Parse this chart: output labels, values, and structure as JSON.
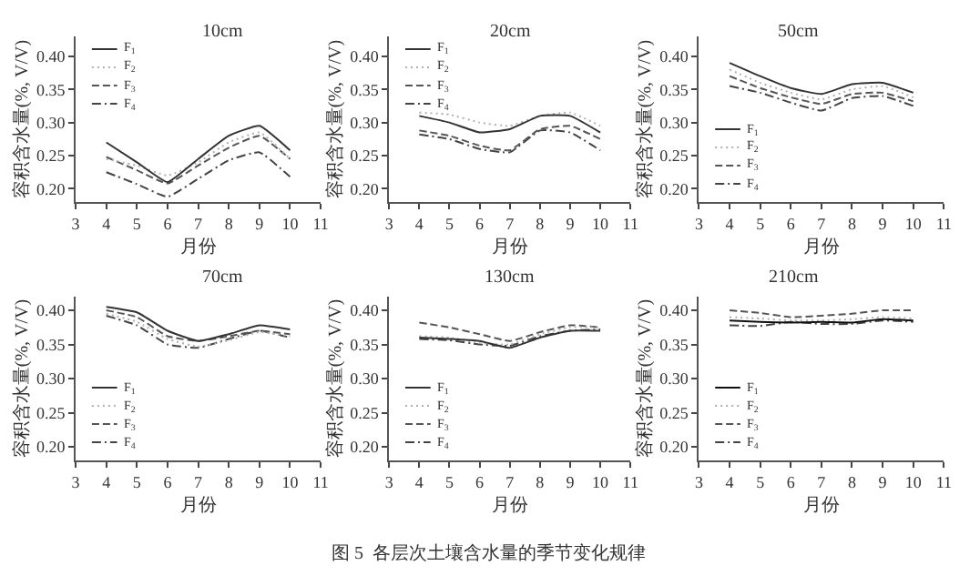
{
  "chart_data": [
    {
      "type": "line",
      "title": "10cm",
      "xlabel": "月份",
      "ylabel": "容积含水量(%, V/V)",
      "x": [
        4,
        5,
        6,
        7,
        8,
        9,
        10
      ],
      "xlim": [
        3,
        11
      ],
      "xticks": [
        3,
        4,
        5,
        6,
        7,
        8,
        9,
        10,
        11
      ],
      "ylim": [
        0.18,
        0.43
      ],
      "yticks": [
        {
          "value": 0.2,
          "label": "0.20"
        },
        {
          "value": 0.25,
          "label": "0.25"
        },
        {
          "value": 0.3,
          "label": "0.30"
        },
        {
          "value": 0.35,
          "label": "0.35"
        },
        {
          "value": 0.4,
          "label": "0.40"
        }
      ],
      "grid": false,
      "legend": "top left",
      "series": [
        {
          "name": "F$_{1}$",
          "color": "#333333",
          "line_style": "solid",
          "values": [
            0.27,
            0.24,
            0.21,
            0.245,
            0.28,
            0.295,
            0.258
          ]
        },
        {
          "name": "F$_{2}$",
          "color": "#b0b0b0",
          "line_style": "dotted",
          "values": [
            0.245,
            0.235,
            0.22,
            0.24,
            0.27,
            0.285,
            0.245
          ]
        },
        {
          "name": "F$_{3}$",
          "color": "#555555",
          "line_style": "dashed",
          "values": [
            0.248,
            0.228,
            0.208,
            0.235,
            0.262,
            0.28,
            0.245
          ]
        },
        {
          "name": "F$_{4}$",
          "color": "#444444",
          "line_style": "dashdot",
          "values": [
            0.225,
            0.207,
            0.188,
            0.215,
            0.243,
            0.255,
            0.218
          ]
        }
      ]
    },
    {
      "type": "line",
      "title": "20cm",
      "xlabel": "月份",
      "ylabel": "容积含水量(%, V/V)",
      "x": [
        4,
        5,
        6,
        7,
        8,
        9,
        10
      ],
      "xlim": [
        3,
        11
      ],
      "xticks": [
        3,
        4,
        5,
        6,
        7,
        8,
        9,
        10,
        11
      ],
      "ylim": [
        0.18,
        0.43
      ],
      "yticks": [
        {
          "value": 0.2,
          "label": "0.20"
        },
        {
          "value": 0.25,
          "label": "0.25"
        },
        {
          "value": 0.3,
          "label": "0.30"
        },
        {
          "value": 0.35,
          "label": "0.35"
        },
        {
          "value": 0.4,
          "label": "0.40"
        }
      ],
      "grid": false,
      "legend": "top left",
      "series": [
        {
          "name": "F$_{1}$",
          "color": "#333333",
          "line_style": "solid",
          "values": [
            0.31,
            0.3,
            0.285,
            0.29,
            0.31,
            0.31,
            0.285
          ]
        },
        {
          "name": "F$_{2}$",
          "color": "#b0b0b0",
          "line_style": "dotted",
          "values": [
            0.315,
            0.312,
            0.3,
            0.295,
            0.31,
            0.315,
            0.295
          ]
        },
        {
          "name": "F$_{3}$",
          "color": "#555555",
          "line_style": "dashed",
          "values": [
            0.288,
            0.28,
            0.265,
            0.258,
            0.29,
            0.295,
            0.275
          ]
        },
        {
          "name": "F$_{4}$",
          "color": "#444444",
          "line_style": "dashdot",
          "values": [
            0.282,
            0.275,
            0.26,
            0.255,
            0.288,
            0.285,
            0.258
          ]
        }
      ]
    },
    {
      "type": "line",
      "title": "50cm",
      "xlabel": "月份",
      "ylabel": "容积含水量(%, V/V)",
      "x": [
        4,
        5,
        6,
        7,
        8,
        9,
        10
      ],
      "xlim": [
        3,
        11
      ],
      "xticks": [
        3,
        4,
        5,
        6,
        7,
        8,
        9,
        10,
        11
      ],
      "ylim": [
        0.18,
        0.43
      ],
      "yticks": [
        {
          "value": 0.2,
          "label": "0.20"
        },
        {
          "value": 0.25,
          "label": "0.25"
        },
        {
          "value": 0.3,
          "label": "0.30"
        },
        {
          "value": 0.35,
          "label": "0.35"
        },
        {
          "value": 0.4,
          "label": "0.40"
        }
      ],
      "grid": false,
      "legend": "bottom left",
      "series": [
        {
          "name": "F$_{1}$",
          "color": "#333333",
          "line_style": "solid",
          "values": [
            0.39,
            0.37,
            0.352,
            0.343,
            0.358,
            0.36,
            0.345
          ]
        },
        {
          "name": "F$_{2}$",
          "color": "#b0b0b0",
          "line_style": "dotted",
          "values": [
            0.38,
            0.36,
            0.345,
            0.335,
            0.35,
            0.355,
            0.338
          ]
        },
        {
          "name": "F$_{3}$",
          "color": "#555555",
          "line_style": "dashed",
          "values": [
            0.37,
            0.352,
            0.338,
            0.328,
            0.343,
            0.345,
            0.332
          ]
        },
        {
          "name": "F$_{4}$",
          "color": "#444444",
          "line_style": "dashdot",
          "values": [
            0.355,
            0.345,
            0.33,
            0.318,
            0.337,
            0.34,
            0.325
          ]
        }
      ]
    },
    {
      "type": "line",
      "title": "70cm",
      "xlabel": "月份",
      "ylabel": "容积含水量(%, V/V)",
      "x": [
        4,
        5,
        6,
        7,
        8,
        9,
        10
      ],
      "xlim": [
        3,
        11
      ],
      "xticks": [
        3,
        4,
        5,
        6,
        7,
        8,
        9,
        10,
        11
      ],
      "ylim": [
        0.18,
        0.42
      ],
      "yticks": [
        {
          "value": 0.2,
          "label": "0.20"
        },
        {
          "value": 0.25,
          "label": "0.25"
        },
        {
          "value": 0.3,
          "label": "0.30"
        },
        {
          "value": 0.35,
          "label": "0.35"
        },
        {
          "value": 0.4,
          "label": "0.40"
        }
      ],
      "grid": false,
      "legend": "bottom left",
      "series": [
        {
          "name": "F$_{1}$",
          "color": "#333333",
          "line_style": "solid",
          "values": [
            0.405,
            0.397,
            0.37,
            0.355,
            0.365,
            0.378,
            0.372
          ]
        },
        {
          "name": "F$_{2}$",
          "color": "#b0b0b0",
          "line_style": "dotted",
          "values": [
            0.395,
            0.383,
            0.358,
            0.347,
            0.356,
            0.368,
            0.362
          ]
        },
        {
          "name": "F$_{3}$",
          "color": "#555555",
          "line_style": "dashed",
          "values": [
            0.4,
            0.39,
            0.362,
            0.355,
            0.362,
            0.37,
            0.365
          ]
        },
        {
          "name": "F$_{4}$",
          "color": "#444444",
          "line_style": "dashdot",
          "values": [
            0.392,
            0.378,
            0.35,
            0.345,
            0.358,
            0.37,
            0.36
          ]
        }
      ]
    },
    {
      "type": "line",
      "title": "130cm",
      "xlabel": "月份",
      "ylabel": "容积含水量(%, V/V)",
      "x": [
        4,
        5,
        6,
        7,
        8,
        9,
        10
      ],
      "xlim": [
        3,
        11
      ],
      "xticks": [
        3,
        4,
        5,
        6,
        7,
        8,
        9,
        10,
        11
      ],
      "ylim": [
        0.18,
        0.42
      ],
      "yticks": [
        {
          "value": 0.2,
          "label": "0.20"
        },
        {
          "value": 0.25,
          "label": "0.25"
        },
        {
          "value": 0.3,
          "label": "0.30"
        },
        {
          "value": 0.35,
          "label": "0.35"
        },
        {
          "value": 0.4,
          "label": "0.40"
        }
      ],
      "grid": false,
      "legend": "bottom left",
      "series": [
        {
          "name": "F$_{1}$",
          "color": "#333333",
          "line_style": "solid",
          "values": [
            0.36,
            0.358,
            0.355,
            0.345,
            0.36,
            0.37,
            0.37
          ]
        },
        {
          "name": "F$_{2}$",
          "color": "#b0b0b0",
          "line_style": "dotted",
          "values": [
            0.362,
            0.36,
            0.352,
            0.35,
            0.365,
            0.375,
            0.375
          ]
        },
        {
          "name": "F$_{3}$",
          "color": "#555555",
          "line_style": "dashed",
          "values": [
            0.382,
            0.375,
            0.365,
            0.355,
            0.368,
            0.378,
            0.375
          ]
        },
        {
          "name": "F$_{4}$",
          "color": "#444444",
          "line_style": "dashdot",
          "values": [
            0.358,
            0.356,
            0.35,
            0.348,
            0.362,
            0.37,
            0.372
          ]
        }
      ]
    },
    {
      "type": "line",
      "title": "210cm",
      "xlabel": "月份",
      "ylabel": "容积含水量(%, V/V)",
      "x": [
        4,
        5,
        6,
        7,
        8,
        9,
        10
      ],
      "xlim": [
        3,
        11
      ],
      "xticks": [
        3,
        4,
        5,
        6,
        7,
        8,
        9,
        10,
        11
      ],
      "ylim": [
        0.18,
        0.42
      ],
      "yticks": [
        {
          "value": 0.2,
          "label": "0.20"
        },
        {
          "value": 0.25,
          "label": "0.25"
        },
        {
          "value": 0.3,
          "label": "0.30"
        },
        {
          "value": 0.35,
          "label": "0.35"
        },
        {
          "value": 0.4,
          "label": "0.40"
        }
      ],
      "grid": false,
      "legend": "bottom left",
      "annotations": [
        "图 5  各层次土壤含水量的季节变化规律"
      ],
      "series": [
        {
          "name": "F$_{1}$",
          "color": "#111111",
          "line_style": "solid",
          "values": [
            0.385,
            0.383,
            0.382,
            0.383,
            0.382,
            0.387,
            0.385
          ]
        },
        {
          "name": "F$_{2}$",
          "color": "#b0b0b0",
          "line_style": "dotted",
          "values": [
            0.39,
            0.388,
            0.385,
            0.385,
            0.387,
            0.39,
            0.388
          ]
        },
        {
          "name": "F$_{3}$",
          "color": "#555555",
          "line_style": "dashed",
          "values": [
            0.4,
            0.396,
            0.39,
            0.392,
            0.395,
            0.4,
            0.4
          ]
        },
        {
          "name": "F$_{4}$",
          "color": "#444444",
          "line_style": "dashdot",
          "values": [
            0.378,
            0.377,
            0.383,
            0.38,
            0.38,
            0.385,
            0.383
          ]
        }
      ]
    }
  ]
}
